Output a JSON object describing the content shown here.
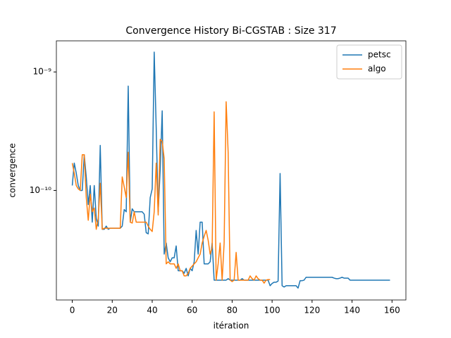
{
  "chart_data": {
    "type": "line",
    "title": "Convergence History Bi-CGSTAB : Size 317",
    "xlabel": "itération",
    "ylabel": "convergence",
    "xlim": [
      -7.95,
      166.95
    ],
    "xticks": [
      0,
      20,
      40,
      60,
      80,
      100,
      120,
      140,
      160
    ],
    "ylim": [
      1.19e-11,
      1.83e-09
    ],
    "yscale": "log",
    "yticks": [
      {
        "value": 1e-10,
        "label": "10⁻¹⁰"
      },
      {
        "value": 1e-09,
        "label": "10⁻⁹"
      }
    ],
    "legend": "upper right",
    "series": [
      {
        "name": "petsc",
        "color": "#1f77b4",
        "values": [
          1.1e-10,
          1.7e-10,
          1.4e-10,
          1.1e-10,
          1e-10,
          1e-10,
          2e-10,
          1.3e-10,
          7.6e-11,
          1.1e-10,
          5.4e-11,
          1.1e-10,
          5.8e-11,
          5e-11,
          2.4e-10,
          4.7e-11,
          4.7e-11,
          5e-11,
          4.7e-11,
          4.8e-11,
          4.8e-11,
          4.8e-11,
          4.8e-11,
          4.8e-11,
          4.8e-11,
          5e-11,
          6.9e-11,
          6.6e-11,
          7.6e-10,
          5.4e-11,
          7e-11,
          6.6e-11,
          6.6e-11,
          6.6e-11,
          6.6e-11,
          6.6e-11,
          6.3e-11,
          4.4e-11,
          4.3e-11,
          8.7e-11,
          1.03e-10,
          1.47e-09,
          3.4e-10,
          6.6e-11,
          1.5e-10,
          4.7e-10,
          2.9e-11,
          3.6e-11,
          2.7e-11,
          2.5e-11,
          2.7e-11,
          2.7e-11,
          3.4e-11,
          2.1e-11,
          2.1e-11,
          2.1e-11,
          2e-11,
          2.2e-11,
          1.9e-11,
          2.2e-11,
          2.1e-11,
          2.5e-11,
          4.6e-11,
          2.9e-11,
          5.4e-11,
          5.4e-11,
          2.4e-11,
          2.4e-11,
          2.4e-11,
          2.5e-11,
          3.6e-11,
          1.75e-11,
          1.75e-11,
          1.75e-11,
          1.75e-11,
          1.75e-11,
          1.75e-11,
          1.75e-11,
          1.8e-11,
          1.75e-11,
          1.75e-11,
          1.75e-11,
          1.75e-11,
          1.75e-11,
          1.75e-11,
          1.8e-11,
          1.75e-11,
          1.75e-11,
          1.75e-11,
          1.75e-11,
          1.75e-11,
          1.75e-11,
          1.75e-11,
          1.75e-11,
          1.75e-11,
          1.75e-11,
          1.75e-11,
          1.75e-11,
          1.75e-11,
          1.57e-11,
          1.64e-11,
          1.68e-11,
          1.68e-11,
          1.72e-11,
          1.39e-10,
          1.57e-11,
          1.53e-11,
          1.57e-11,
          1.57e-11,
          1.57e-11,
          1.57e-11,
          1.57e-11,
          1.57e-11,
          1.5e-11,
          1.73e-11,
          1.73e-11,
          1.75e-11,
          1.85e-11,
          1.85e-11,
          1.85e-11,
          1.85e-11,
          1.85e-11,
          1.85e-11,
          1.85e-11,
          1.85e-11,
          1.85e-11,
          1.85e-11,
          1.85e-11,
          1.85e-11,
          1.85e-11,
          1.85e-11,
          1.82e-11,
          1.8e-11,
          1.8e-11,
          1.82e-11,
          1.85e-11,
          1.82e-11,
          1.82e-11,
          1.82e-11,
          1.75e-11,
          1.75e-11,
          1.75e-11,
          1.75e-11,
          1.75e-11,
          1.75e-11,
          1.75e-11,
          1.75e-11,
          1.75e-11,
          1.75e-11,
          1.75e-11,
          1.75e-11,
          1.75e-11,
          1.75e-11,
          1.75e-11,
          1.75e-11,
          1.75e-11,
          1.75e-11,
          1.75e-11,
          1.75e-11,
          1.75e-11
        ]
      },
      {
        "name": "algo",
        "color": "#ff7f0e",
        "values": [
          1.7e-10,
          1.4e-10,
          1.1e-10,
          1.03e-10,
          1e-10,
          2e-10,
          2e-10,
          8.7e-11,
          5.6e-11,
          9.3e-11,
          6.6e-11,
          7.1e-11,
          4.7e-11,
          5.8e-11,
          1.15e-10,
          4.7e-11,
          4.8e-11,
          4.8e-11,
          4.8e-11,
          4.8e-11,
          4.8e-11,
          4.8e-11,
          4.8e-11,
          4.8e-11,
          4.8e-11,
          1.3e-10,
          1.07e-10,
          8.7e-11,
          2.1e-10,
          5.4e-11,
          5.3e-11,
          6.6e-11,
          5.4e-11,
          5.4e-11,
          5.4e-11,
          5.4e-11,
          5.4e-11,
          5.4e-11,
          5e-11,
          4.7e-11,
          4.5e-11,
          6.6e-11,
          1.7e-10,
          6.2e-11,
          2.7e-10,
          2.6e-10,
          1.85e-10,
          2.4e-11,
          2.5e-11,
          2.4e-11,
          2.4e-11,
          2.4e-11,
          2.2e-11,
          2.4e-11,
          2.1e-11,
          2.1e-11,
          1.9e-11,
          1.9e-11,
          2e-11,
          2.2e-11,
          2.3e-11,
          2.4e-11,
          2.5e-11,
          2.7e-11,
          2.9e-11,
          3.6e-11,
          4.1e-11,
          4.6e-11,
          3.8e-11,
          2.9e-11,
          3.3e-11,
          4.6e-10,
          1.75e-11,
          2.4e-11,
          3.6e-11,
          1.75e-11,
          3.6e-11,
          5.6e-10,
          2.1e-10,
          1.75e-11,
          1.7e-11,
          1.75e-11,
          3e-11,
          1.75e-11,
          1.75e-11,
          1.75e-11,
          1.75e-11,
          1.75e-11,
          1.75e-11,
          1.9e-11,
          1.8e-11,
          1.75e-11,
          1.9e-11,
          1.8e-11,
          1.75e-11,
          1.75e-11,
          1.65e-11,
          1.75e-11,
          1.77e-11,
          1.77e-11
        ]
      }
    ]
  }
}
